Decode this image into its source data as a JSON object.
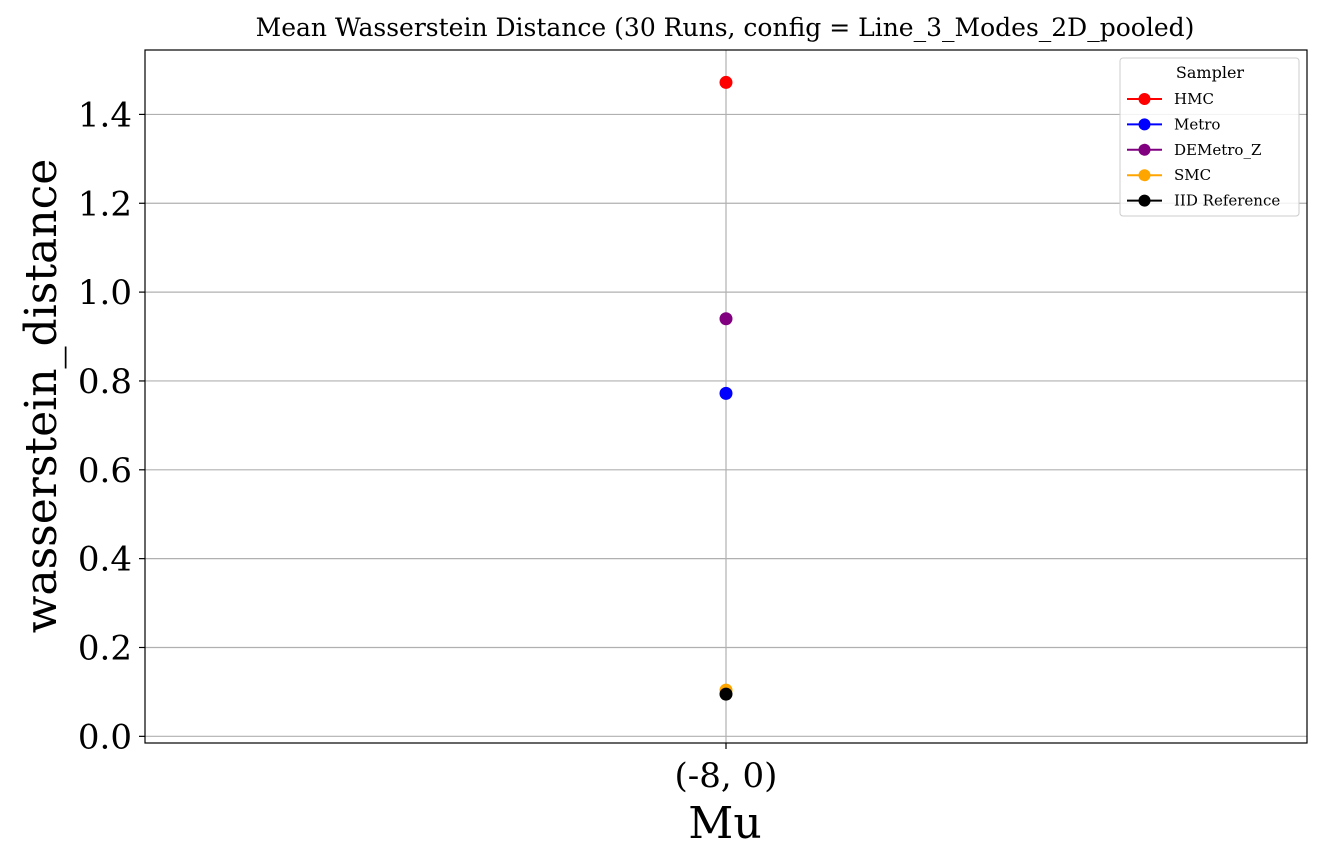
{
  "chart_data": {
    "type": "scatter",
    "title": "Mean Wasserstein Distance (30 Runs, config = Line_3_Modes_2D_pooled)",
    "xlabel": "Mu",
    "ylabel": "wasserstein_distance",
    "categories": [
      "(-8, 0)"
    ],
    "ylim": [
      -0.015,
      1.545
    ],
    "yticks": [
      0.0,
      0.2,
      0.4,
      0.6,
      0.8,
      1.0,
      1.2,
      1.4
    ],
    "ytick_labels": [
      "0.0",
      "0.2",
      "0.4",
      "0.6",
      "0.8",
      "1.0",
      "1.2",
      "1.4"
    ],
    "grid": true,
    "legend": {
      "title": "Sampler",
      "placement": "top-right"
    },
    "series": [
      {
        "name": "HMC",
        "color": "#ff0000",
        "values": [
          1.472
        ]
      },
      {
        "name": "Metro",
        "color": "#0000ff",
        "values": [
          0.772
        ]
      },
      {
        "name": "DEMetro_Z",
        "color": "#800080",
        "values": [
          0.94
        ]
      },
      {
        "name": "SMC",
        "color": "#ffa500",
        "values": [
          0.104
        ]
      },
      {
        "name": "IID Reference",
        "color": "#000000",
        "values": [
          0.095
        ]
      }
    ]
  }
}
